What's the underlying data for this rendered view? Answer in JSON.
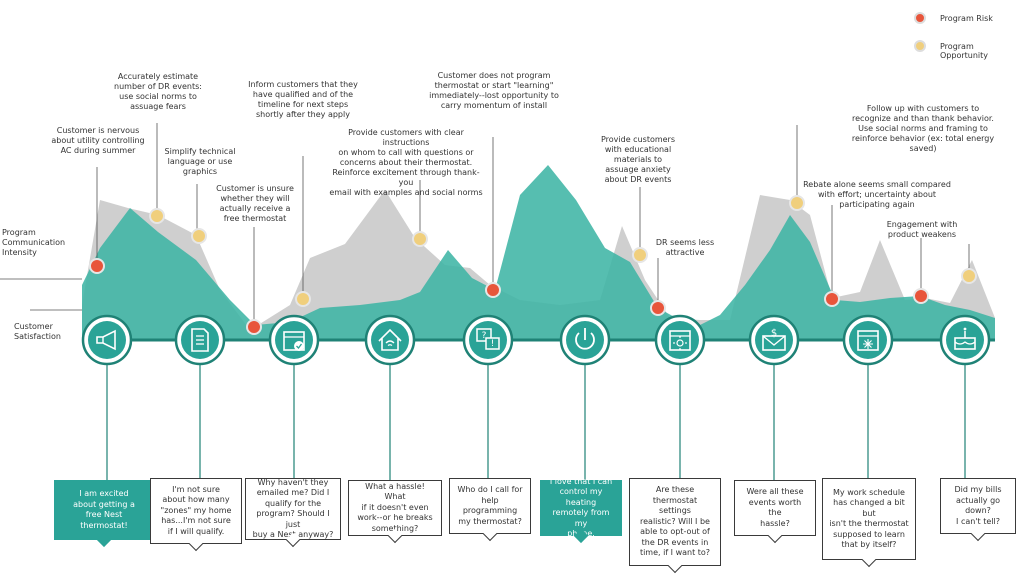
{
  "colors": {
    "teal": "#2aa397",
    "teal_area": "#3fb5a5",
    "gray_area": "#cfcfcf",
    "risk": "#e8553b",
    "opportunity": "#f0cf7d",
    "line": "#1f8276"
  },
  "legend": {
    "risk_label": "Program Risk",
    "opportunity_label": "Program Opportunity"
  },
  "axis_labels": {
    "communication": "Program\nCommunication\nIntensity",
    "satisfaction": "Customer\nSatisfaction"
  },
  "annotations": [
    "Accurately estimate\nnumber of DR events:\nuse social norms to\nassuage fears",
    "Customer is nervous\nabout utility controlling\nAC during summer",
    "Simplify technical\nlanguage or use\ngraphics",
    "Inform customers that they\nhave qualified and of the\ntimeline for next steps\nshortly after they apply",
    "Customer is unsure\nwhether they will\nactually receive a\nfree thermostat",
    "Customer does not program\nthermostat or start \"learning\"\nimmediately--lost opportunity to\ncarry momentum of install",
    "Provide customers with clear instructions\non whom to call with questions or\nconcerns about their thermostat.\nReinforce excitement through thank-you\nemail with examples and social norms",
    "Provide customers\nwith educational\nmaterials to\nassuage anxiety\nabout DR events",
    "DR seems less\nattractive",
    "Follow up with customers to\nrecognize and than thank behavior.\nUse social norms and framing to\nreinforce behavior (ex: total energy\nsaved)",
    "Rebate alone seems small compared\nwith effort; uncertainty about\nparticipating again",
    "Engagement with\nproduct weakens"
  ],
  "stages": [
    {
      "icon": "megaphone-icon",
      "quote": "I am excited\nabout getting a\nfree Nest\nthermostat!",
      "highlight": true
    },
    {
      "icon": "document-icon",
      "quote": "I'm not sure\nabout how many\n\"zones\" my home\nhas...I'm not sure\nif I will qualify.",
      "highlight": false
    },
    {
      "icon": "calendar-check-icon",
      "quote": "Why haven't they\nemailed me? Did I\nqualify for the\nprogram? Should I just\nbuy a Nest anyway?",
      "highlight": false
    },
    {
      "icon": "home-wifi-icon",
      "quote": "What a hassle! What\nif it doesn't even\nwork--or he breaks\nsomething?",
      "highlight": false
    },
    {
      "icon": "question-chat-icon",
      "quote": "Who do I call for\nhelp programming\nmy thermostat?",
      "highlight": false
    },
    {
      "icon": "power-icon",
      "quote": "I love that I can\ncontrol my heating\nremotely from my\nphone.",
      "highlight": true
    },
    {
      "icon": "calendar-sun-icon",
      "quote": "Are these\nthermostat settings\nrealistic? Will I be\nable to opt-out of\nthe DR events in\ntime, if I want to?",
      "highlight": false
    },
    {
      "icon": "envelope-dollar-icon",
      "quote": "Were all these\nevents worth the\nhassle?",
      "highlight": false
    },
    {
      "icon": "calendar-snow-icon",
      "quote": "My work schedule\nhas changed a bit but\nisn't the thermostat\nsupposed to learn\nthat by itself?",
      "highlight": false
    },
    {
      "icon": "cake-icon",
      "quote": "Did my bills\nactually go down?\nI can't tell?",
      "highlight": false
    }
  ]
}
